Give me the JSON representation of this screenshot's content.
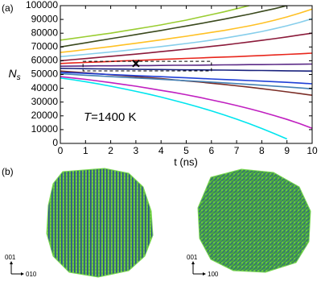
{
  "chart_data": {
    "type": "line",
    "panel_label": "(a)",
    "x_label": "t (ns)",
    "y_label": {
      "main": "N",
      "sub": "s"
    },
    "annotation": {
      "variable": "T",
      "text": "=1400 K"
    },
    "xlim": [
      0,
      10
    ],
    "xticks": [
      0,
      1,
      2,
      3,
      4,
      5,
      6,
      7,
      8,
      9,
      10
    ],
    "ylim": [
      0,
      100000
    ],
    "yticks": [
      0,
      10000,
      20000,
      30000,
      40000,
      50000,
      60000,
      70000,
      80000,
      90000,
      100000
    ],
    "marker": {
      "x": 3,
      "y": 58000
    },
    "box": {
      "x": [
        0.9,
        6
      ],
      "y": [
        52600,
        59600
      ]
    },
    "x": [
      0,
      0.5,
      1,
      1.5,
      2,
      2.5,
      3,
      3.5,
      4,
      4.5,
      5,
      5.5,
      6,
      6.5,
      7,
      7.5,
      8,
      8.5,
      9,
      9.5,
      10
    ],
    "series": [
      {
        "color": "#9acd32",
        "values": [
          75000,
          76200,
          77500,
          78800,
          80000,
          81500,
          83000,
          84500,
          86000,
          87800,
          89500,
          91500,
          93500,
          95500,
          97800,
          100000,
          null,
          null,
          null,
          null,
          null
        ]
      },
      {
        "color": "#3b4a1e",
        "values": [
          70000,
          71500,
          73000,
          74500,
          76000,
          77500,
          79000,
          80500,
          82000,
          83600,
          85200,
          86800,
          88500,
          90200,
          92000,
          93800,
          95800,
          97800,
          100000,
          null,
          null
        ]
      },
      {
        "color": "#ffc125",
        "values": [
          66000,
          67000,
          68100,
          69200,
          70300,
          71500,
          72700,
          73900,
          75200,
          76500,
          77800,
          79200,
          80600,
          82000,
          83600,
          85300,
          87200,
          89400,
          91800,
          94500,
          97500
        ]
      },
      {
        "color": "#87ceeb",
        "values": [
          63000,
          63800,
          64600,
          65500,
          66400,
          67300,
          68300,
          69300,
          70300,
          71400,
          72500,
          73700,
          75000,
          76400,
          77900,
          79500,
          81200,
          83200,
          85400,
          87800,
          90500
        ]
      },
      {
        "color": "#8b1a3a",
        "values": [
          60000,
          60800,
          61600,
          62400,
          63200,
          64000,
          64800,
          65700,
          66600,
          67500,
          68400,
          69400,
          70400,
          71400,
          72500,
          73600,
          74800,
          76000,
          77300,
          78700,
          80000
        ]
      },
      {
        "color": "#e8261c",
        "values": [
          58000,
          58400,
          58800,
          59100,
          59500,
          59900,
          60200,
          60600,
          61000,
          61300,
          61700,
          62000,
          62400,
          62700,
          63000,
          63400,
          63800,
          64200,
          64600,
          65000,
          65500
        ]
      },
      {
        "color": "#5b2a86",
        "values": [
          56000,
          56100,
          56200,
          56300,
          56300,
          56400,
          56500,
          56500,
          56600,
          56700,
          56700,
          56800,
          56900,
          57000,
          57100,
          57200,
          57200,
          57300,
          57400,
          57500,
          57600
        ]
      },
      {
        "color": "#1a237e",
        "values": [
          54500,
          54400,
          54200,
          54100,
          54000,
          53900,
          53800,
          53700,
          53600,
          53500,
          53400,
          53400,
          53300,
          53200,
          53100,
          53000,
          52900,
          52800,
          52700,
          52600,
          52500
        ]
      },
      {
        "color": "#7b2d26",
        "values": [
          52500,
          51900,
          51200,
          50500,
          49800,
          49100,
          48400,
          47700,
          47000,
          46200,
          45400,
          44600,
          43700,
          42800,
          41800,
          40800,
          39700,
          38600,
          37400,
          36200,
          35000
        ]
      },
      {
        "color": "#1f3fd6",
        "values": [
          51500,
          51200,
          50800,
          50400,
          50000,
          49600,
          49200,
          48800,
          48400,
          48000,
          47600,
          47200,
          46800,
          46400,
          46000,
          45600,
          45200,
          44800,
          44300,
          43800,
          43300
        ]
      },
      {
        "color": "#4682b4",
        "values": [
          50500,
          50000,
          49500,
          49000,
          48500,
          48000,
          47500,
          47000,
          46500,
          46000,
          45500,
          45000,
          44500,
          44000,
          43400,
          42800,
          42200,
          41600,
          41000,
          40300,
          39600
        ]
      },
      {
        "color": "#c020c0",
        "values": [
          48500,
          47500,
          46500,
          45300,
          44100,
          42800,
          41500,
          40000,
          38500,
          37000,
          35300,
          33500,
          31600,
          29600,
          27500,
          25200,
          22800,
          20200,
          17400,
          14400,
          11000
        ]
      },
      {
        "color": "#00e5ee",
        "values": [
          47500,
          46200,
          44800,
          43200,
          41500,
          39700,
          37800,
          35800,
          33600,
          31300,
          28900,
          26300,
          23600,
          20700,
          17600,
          14300,
          10800,
          7100,
          3200,
          null,
          null
        ]
      }
    ]
  },
  "panel_b": {
    "label": "(b)",
    "images": [
      {
        "up": "001",
        "right": "010"
      },
      {
        "up": "001",
        "right": "100"
      }
    ]
  }
}
